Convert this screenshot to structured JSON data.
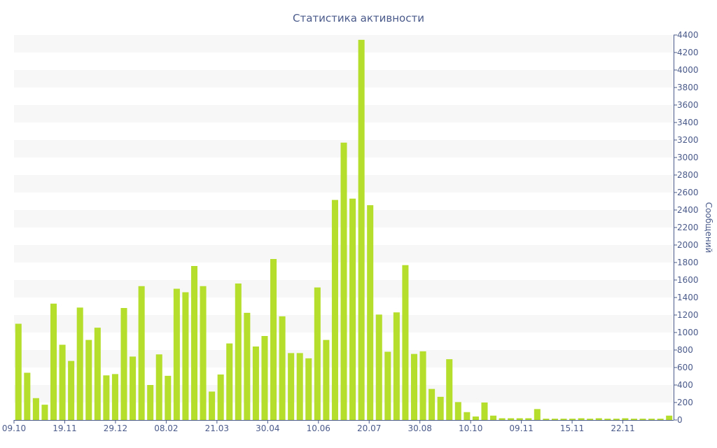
{
  "chart_data": {
    "type": "bar",
    "title": "Статистика активности",
    "xlabel": "",
    "ylabel": "Сообщений",
    "ylim": [
      0,
      4400
    ],
    "y_tick_step": 200,
    "y_axis_side": "right",
    "grid": "alternating horizontal bands",
    "x_tick_labels": [
      "09.10",
      "19.11",
      "29.12",
      "08.02",
      "21.03",
      "30.04",
      "10.06",
      "20.07",
      "30.08",
      "10.10",
      "09.11",
      "15.11",
      "22.11"
    ],
    "series": [
      {
        "values": [
          1100,
          540,
          250,
          175,
          1330,
          860,
          675,
          1285,
          915,
          1055,
          510,
          525,
          1280,
          725,
          1530,
          400,
          750,
          505,
          1500,
          1460,
          1760,
          1530,
          325,
          520,
          875,
          1560,
          1225,
          840,
          960,
          1840,
          1185,
          765,
          765,
          705,
          1515,
          915,
          2515,
          3170,
          2530,
          4345,
          2455,
          1205,
          780,
          1230,
          1770,
          755,
          785,
          355,
          265,
          695,
          205,
          90,
          40,
          200,
          50,
          20,
          20,
          20,
          20,
          125,
          15,
          15,
          15,
          15,
          20,
          15,
          20,
          15,
          15,
          20,
          15,
          15,
          15,
          15,
          50
        ]
      }
    ],
    "colors": {
      "bar": "#b5de2c",
      "band": "#f7f7f7",
      "text": "#4a5a8a",
      "axis": "#4a5a8a"
    }
  }
}
